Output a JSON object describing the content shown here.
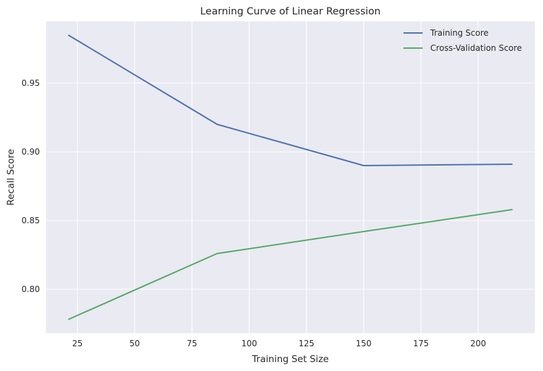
{
  "chart_data": {
    "type": "line",
    "title": "Learning Curve of Linear Regression",
    "xlabel": "Training Set Size",
    "ylabel": "Recall Score",
    "x": [
      21,
      86,
      150,
      215
    ],
    "series": [
      {
        "name": "Training Score",
        "color": "#4c72b0",
        "values": [
          0.985,
          0.92,
          0.89,
          0.891
        ]
      },
      {
        "name": "Cross-Validation Score",
        "color": "#55a868",
        "values": [
          0.778,
          0.826,
          0.842,
          0.858
        ]
      }
    ],
    "xlim": [
      11.3,
      224.7
    ],
    "ylim": [
      0.768,
      0.995
    ],
    "xticks": [
      25,
      50,
      75,
      100,
      125,
      150,
      175,
      200
    ],
    "xtick_labels": [
      "25",
      "50",
      "75",
      "100",
      "125",
      "150",
      "175",
      "200"
    ],
    "yticks": [
      0.8,
      0.85,
      0.9,
      0.95
    ],
    "ytick_labels": [
      "0.80",
      "0.85",
      "0.90",
      "0.95"
    ],
    "grid": true,
    "legend_position": "top-right",
    "background_color": "#eaeaf2",
    "grid_color": "#ffffff"
  }
}
